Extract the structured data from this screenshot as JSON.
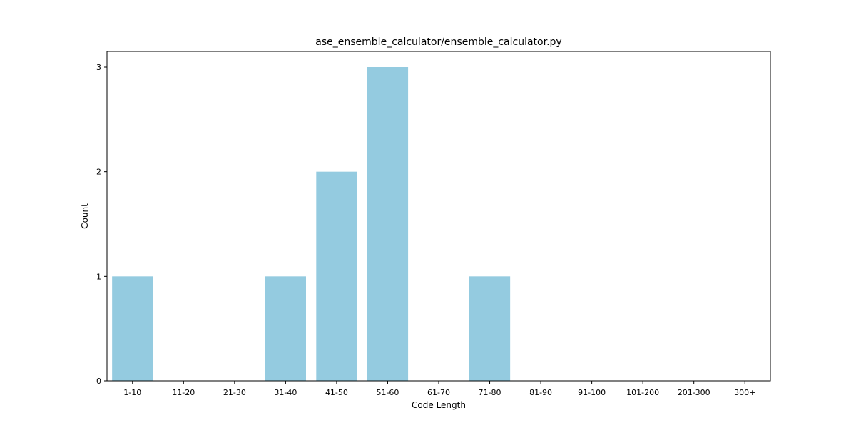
{
  "chart_data": {
    "type": "bar",
    "title": "ase_ensemble_calculator/ensemble_calculator.py",
    "xlabel": "Code Length",
    "ylabel": "Count",
    "categories": [
      "1-10",
      "11-20",
      "21-30",
      "31-40",
      "41-50",
      "51-60",
      "61-70",
      "71-80",
      "81-90",
      "91-100",
      "101-200",
      "201-300",
      "300+"
    ],
    "values": [
      1,
      0,
      0,
      1,
      2,
      3,
      0,
      1,
      0,
      0,
      0,
      0,
      0
    ],
    "ylim": [
      0,
      3.15
    ],
    "yticks": [
      "0",
      "1",
      "2",
      "3"
    ],
    "grid": false,
    "bar_color": "#94cbe0"
  }
}
